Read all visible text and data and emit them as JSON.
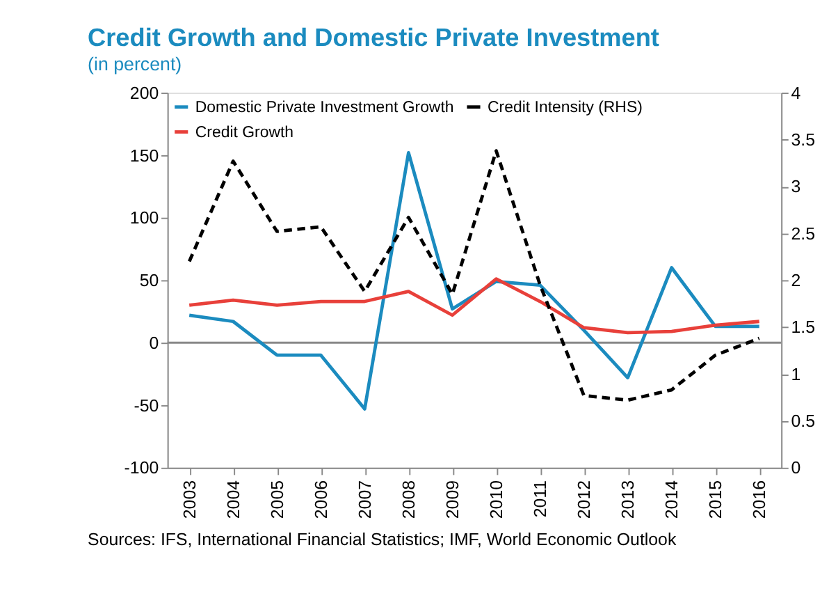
{
  "chart_data": {
    "type": "line",
    "title": "Credit Growth and Domestic Private Investment",
    "subtitle": "(in percent)",
    "categories": [
      "2003",
      "2004",
      "2005",
      "2006",
      "2007",
      "2008",
      "2009",
      "2010",
      "2011",
      "2012",
      "2013",
      "2014",
      "2015",
      "2016"
    ],
    "series": [
      {
        "name": "Domestic Private Investment Growth",
        "color": "#1b8bbf",
        "line_style": "solid",
        "values": [
          22,
          17,
          -10,
          -10,
          -53,
          152,
          27,
          49,
          46,
          10,
          -28,
          60,
          13,
          13
        ]
      },
      {
        "name": "Credit Growth",
        "color": "#e8403a",
        "line_style": "solid",
        "values": [
          30,
          34,
          30,
          33,
          33,
          41,
          22,
          51,
          33,
          12,
          8,
          9,
          14,
          17
        ]
      },
      {
        "name": "Credit Intensity (RHS)",
        "color": "#000000",
        "line_style": "dashed",
        "axis": "y2",
        "values": [
          2.2,
          3.27,
          2.52,
          2.57,
          1.88,
          2.67,
          1.85,
          3.38,
          1.95,
          0.77,
          0.72,
          0.83,
          1.2,
          1.38
        ]
      }
    ],
    "ylim": [
      -100,
      200
    ],
    "yticks": [
      -100,
      -50,
      0,
      50,
      100,
      150,
      200
    ],
    "y2lim": [
      0,
      4
    ],
    "y2ticks": [
      0,
      0.5,
      1,
      1.5,
      2,
      2.5,
      3,
      3.5,
      4
    ],
    "ref_lines": [
      {
        "axis": "y",
        "value": 0,
        "color": "#888888"
      }
    ],
    "legend": "top left",
    "marker": "none",
    "annotations": [
      "Sources: IFS, International Financial Statistics; IMF, World Economic Outlook"
    ]
  }
}
